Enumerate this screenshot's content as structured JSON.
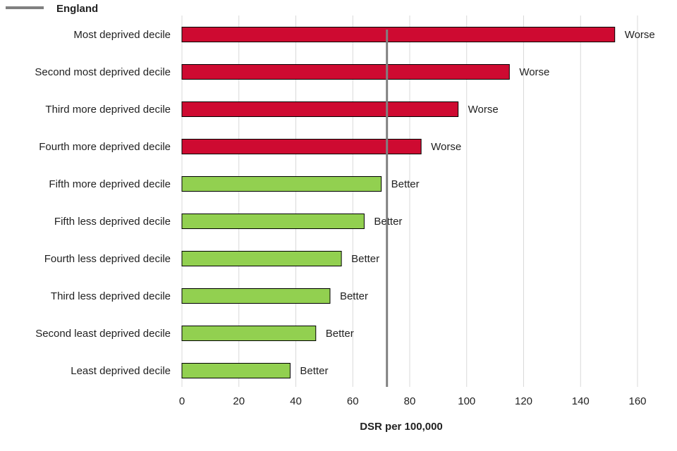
{
  "chart_data": {
    "type": "bar",
    "orientation": "horizontal",
    "categories": [
      "Most deprived decile",
      "Second most deprived decile",
      "Third more deprived decile",
      "Fourth more deprived decile",
      "Fifth more deprived decile",
      "Fifth less deprived decile",
      "Fourth less deprived decile",
      "Third less deprived decile",
      "Second least deprived decile",
      "Least deprived decile"
    ],
    "values": [
      152,
      115,
      97,
      84,
      70,
      64,
      56,
      52,
      47,
      38
    ],
    "data_labels": [
      "Worse",
      "Worse",
      "Worse",
      "Worse",
      "Better",
      "Better",
      "Better",
      "Better",
      "Better",
      "Better"
    ],
    "reference_line": {
      "name": "England",
      "value": 72
    },
    "xlabel": "DSR per 100,000",
    "ylabel": "",
    "xlim": [
      0,
      160
    ],
    "xticks": [
      0,
      20,
      40,
      60,
      80,
      100,
      120,
      140,
      160
    ],
    "grid": "vertical",
    "legend": {
      "position": "top-left",
      "entries": [
        "England"
      ]
    },
    "colors": {
      "Worse": "#ce0a31",
      "Better": "#92d050",
      "reference_line": "#808080",
      "grid": "#d9d9d9",
      "bar_outline": "#000000"
    }
  }
}
